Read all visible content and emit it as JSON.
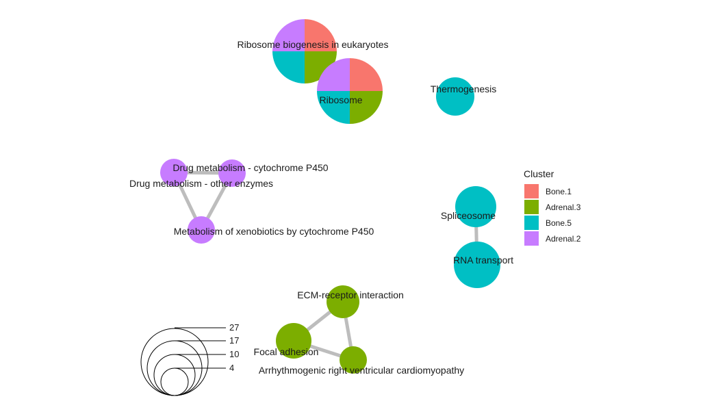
{
  "colors": {
    "edge": "#bdbdbd",
    "clusters": {
      "Bone.1": "#F8766D",
      "Adrenal.3": "#7CAE00",
      "Bone.5": "#00BFC4",
      "Adrenal.2": "#C77CFF"
    }
  },
  "nodes": [
    {
      "label": "Ribosome biogenesis in eukaryotes",
      "size": 27,
      "clusters": [
        "Bone.1",
        "Adrenal.3",
        "Bone.5",
        "Adrenal.2"
      ]
    },
    {
      "label": "Ribosome",
      "size": 27,
      "clusters": [
        "Bone.1",
        "Adrenal.3",
        "Bone.5",
        "Adrenal.2"
      ]
    },
    {
      "label": "Thermogenesis",
      "size": 10,
      "clusters": [
        "Bone.5"
      ]
    },
    {
      "label": "Drug metabolism - cytochrome P450",
      "size": 6,
      "clusters": [
        "Adrenal.2"
      ]
    },
    {
      "label": "Drug metabolism - other enzymes",
      "size": 6,
      "clusters": [
        "Adrenal.2"
      ]
    },
    {
      "label": "Metabolism of xenobiotics by cytochrome P450",
      "size": 6,
      "clusters": [
        "Adrenal.2"
      ]
    },
    {
      "label": "Spliceosome",
      "size": 10,
      "clusters": [
        "Bone.5"
      ]
    },
    {
      "label": "RNA transport",
      "size": 14,
      "clusters": [
        "Bone.5"
      ]
    },
    {
      "label": "ECM-receptor interaction",
      "size": 7,
      "clusters": [
        "Adrenal.3"
      ]
    },
    {
      "label": "Focal adhesion",
      "size": 8,
      "clusters": [
        "Adrenal.3"
      ]
    },
    {
      "label": "Arrhythmogenic right ventricular cardiomyopathy",
      "size": 5,
      "clusters": [
        "Adrenal.3"
      ]
    }
  ],
  "edges": [
    [
      "Drug metabolism - cytochrome P450",
      "Drug metabolism - other enzymes"
    ],
    [
      "Drug metabolism - cytochrome P450",
      "Metabolism of xenobiotics by cytochrome P450"
    ],
    [
      "Drug metabolism - other enzymes",
      "Metabolism of xenobiotics by cytochrome P450"
    ],
    [
      "Spliceosome",
      "RNA transport"
    ],
    [
      "ECM-receptor interaction",
      "Focal adhesion"
    ],
    [
      "ECM-receptor interaction",
      "Arrhythmogenic right ventricular cardiomyopathy"
    ],
    [
      "Focal adhesion",
      "Arrhythmogenic right ventricular cardiomyopathy"
    ]
  ],
  "legend": {
    "title": "Cluster",
    "items": [
      "Bone.1",
      "Adrenal.3",
      "Bone.5",
      "Adrenal.2"
    ]
  },
  "size_legend": {
    "values": [
      27,
      17,
      10,
      4
    ]
  }
}
